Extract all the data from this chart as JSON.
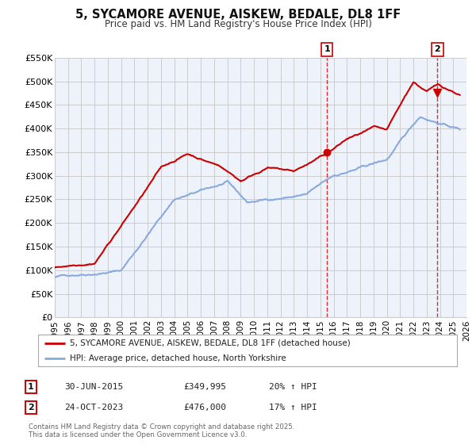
{
  "title": "5, SYCAMORE AVENUE, AISKEW, BEDALE, DL8 1FF",
  "subtitle": "Price paid vs. HM Land Registry's House Price Index (HPI)",
  "legend_line1": "5, SYCAMORE AVENUE, AISKEW, BEDALE, DL8 1FF (detached house)",
  "legend_line2": "HPI: Average price, detached house, North Yorkshire",
  "annotation1_date": "30-JUN-2015",
  "annotation1_price": "£349,995",
  "annotation1_hpi": "20% ↑ HPI",
  "annotation2_date": "24-OCT-2023",
  "annotation2_price": "£476,000",
  "annotation2_hpi": "17% ↑ HPI",
  "copyright": "Contains HM Land Registry data © Crown copyright and database right 2025.\nThis data is licensed under the Open Government Licence v3.0.",
  "house_color": "#cc0000",
  "hpi_color": "#88aadd",
  "background_color": "#ffffff",
  "grid_color": "#cccccc",
  "plot_bg_color": "#eef2fb",
  "vline1_x": 2015.5,
  "vline2_x": 2023.81,
  "ylim": [
    0,
    550000
  ],
  "xlim_start": 1995,
  "xlim_end": 2026,
  "yticks": [
    0,
    50000,
    100000,
    150000,
    200000,
    250000,
    300000,
    350000,
    400000,
    450000,
    500000,
    550000
  ],
  "ytick_labels": [
    "£0",
    "£50K",
    "£100K",
    "£150K",
    "£200K",
    "£250K",
    "£300K",
    "£350K",
    "£400K",
    "£450K",
    "£500K",
    "£550K"
  ],
  "xticks": [
    1995,
    1996,
    1997,
    1998,
    1999,
    2000,
    2001,
    2002,
    2003,
    2004,
    2005,
    2006,
    2007,
    2008,
    2009,
    2010,
    2011,
    2012,
    2013,
    2014,
    2015,
    2016,
    2017,
    2018,
    2019,
    2020,
    2021,
    2022,
    2023,
    2024,
    2025,
    2026
  ]
}
